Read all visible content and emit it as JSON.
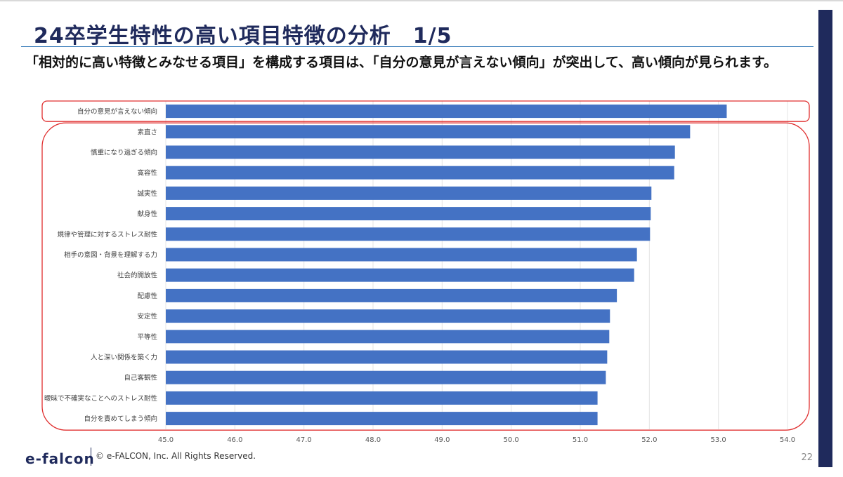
{
  "slide": {
    "title": "24卒学生特性の高い項目特徴の分析　1/5",
    "subtitle": "「相対的に高い特徴とみなせる項目」を構成する項目は、「自分の意見が言えない傾向」が突出して、高い傾向が見られます。",
    "footer_logo": "e-falcon",
    "footer_copyright": "© e-FALCON, Inc. All Rights Reserved.",
    "page_number": "22",
    "colors": {
      "bar": "#4472c4",
      "highlight": "#e03030",
      "accent": "#1f2a5c",
      "rule": "#2e75b6"
    }
  },
  "chart_data": {
    "type": "bar",
    "orientation": "horizontal",
    "categories": [
      "自分の意見が言えない傾向",
      "素直さ",
      "慎重になり過ぎる傾向",
      "寛容性",
      "誠実性",
      "献身性",
      "規律や管理に対するストレス耐性",
      "相手の意図・背景を理解する力",
      "社会的開放性",
      "配慮性",
      "安定性",
      "平等性",
      "人と深い関係を築く力",
      "自己客観性",
      "曖昧で不確実なことへのストレス耐性",
      "自分を責めてしまう傾向"
    ],
    "values": [
      53.12,
      52.59,
      52.37,
      52.36,
      52.03,
      52.02,
      52.01,
      51.82,
      51.78,
      51.53,
      51.43,
      51.42,
      51.39,
      51.37,
      51.25,
      51.25
    ],
    "xlim": [
      45.0,
      54.0
    ],
    "xticks": [
      "45.0",
      "46.0",
      "47.0",
      "48.0",
      "49.0",
      "50.0",
      "51.0",
      "52.0",
      "53.0",
      "54.0"
    ],
    "grid": true,
    "legend": "none",
    "highlight_groups": [
      {
        "from_index": 0,
        "to_index": 0
      },
      {
        "from_index": 1,
        "to_index": 15
      }
    ]
  }
}
